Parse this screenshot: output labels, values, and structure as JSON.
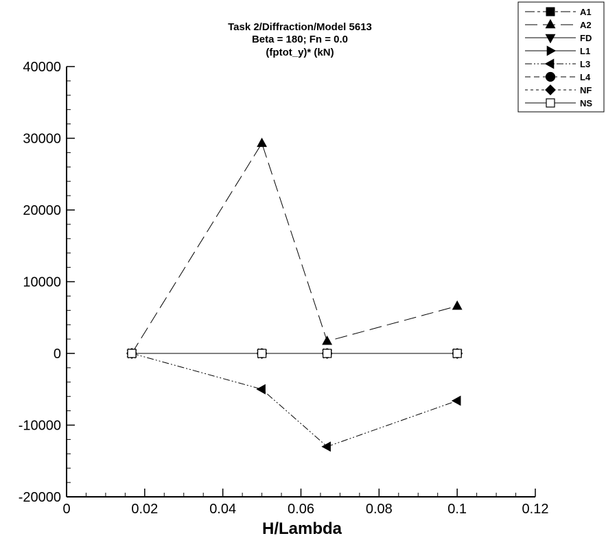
{
  "chart_data": {
    "type": "line",
    "title": [
      "Task 2/Diffraction/Model 5613",
      "Beta = 180; Fn = 0.0",
      "(fptot_y)* (kN)"
    ],
    "xlabel": "H/Lambda",
    "ylabel": "",
    "xlim": [
      0,
      0.12
    ],
    "ylim": [
      -20000,
      40000
    ],
    "xticks": [
      0,
      0.02,
      0.04,
      0.06,
      0.08,
      0.1,
      0.12
    ],
    "xtick_labels": [
      "0",
      "0.02",
      "0.04",
      "0.06",
      "0.08",
      "0.1",
      "0.12"
    ],
    "yticks": [
      -20000,
      -10000,
      0,
      10000,
      20000,
      30000,
      40000
    ],
    "ytick_labels": [
      "-20000",
      "-10000",
      "0",
      "10000",
      "20000",
      "30000",
      "40000"
    ],
    "legend_position": "top-right",
    "grid": false,
    "series": [
      {
        "name": "A1",
        "marker": "square-filled",
        "dash": "14,4,4,4",
        "x": [
          0.0167,
          0.05,
          0.0667,
          0.1
        ],
        "y": [
          0,
          0,
          0,
          0
        ]
      },
      {
        "name": "A2",
        "marker": "triangle-up",
        "dash": "18,8",
        "x": [
          0.0167,
          0.05,
          0.0667,
          0.1
        ],
        "y": [
          0,
          29300,
          1700,
          6600
        ]
      },
      {
        "name": "FD",
        "marker": "triangle-down",
        "dash": "",
        "x": [
          0.0167,
          0.05,
          0.0667,
          0.1
        ],
        "y": [
          0,
          0,
          0,
          0
        ]
      },
      {
        "name": "L1",
        "marker": "triangle-right",
        "dash": "",
        "x": [
          0.0167,
          0.05,
          0.0667,
          0.1
        ],
        "y": [
          0,
          0,
          0,
          0
        ]
      },
      {
        "name": "L3",
        "marker": "triangle-left",
        "dash": "10,3,2,3,2,3",
        "x": [
          0.0167,
          0.05,
          0.0667,
          0.1
        ],
        "y": [
          0,
          -5000,
          -13000,
          -6600
        ]
      },
      {
        "name": "L4",
        "marker": "circle-filled",
        "dash": "8,5",
        "x": [
          0.0167,
          0.05,
          0.0667,
          0.1
        ],
        "y": [
          0,
          0,
          0,
          0
        ]
      },
      {
        "name": "NF",
        "marker": "diamond-filled",
        "dash": "4,4",
        "x": [
          0.0167,
          0.05,
          0.0667,
          0.1
        ],
        "y": [
          0,
          0,
          0,
          0
        ]
      },
      {
        "name": "NS",
        "marker": "square-open",
        "dash": "",
        "x": [
          0.0167,
          0.05,
          0.0667,
          0.1
        ],
        "y": [
          0,
          0,
          0,
          0
        ]
      }
    ]
  }
}
